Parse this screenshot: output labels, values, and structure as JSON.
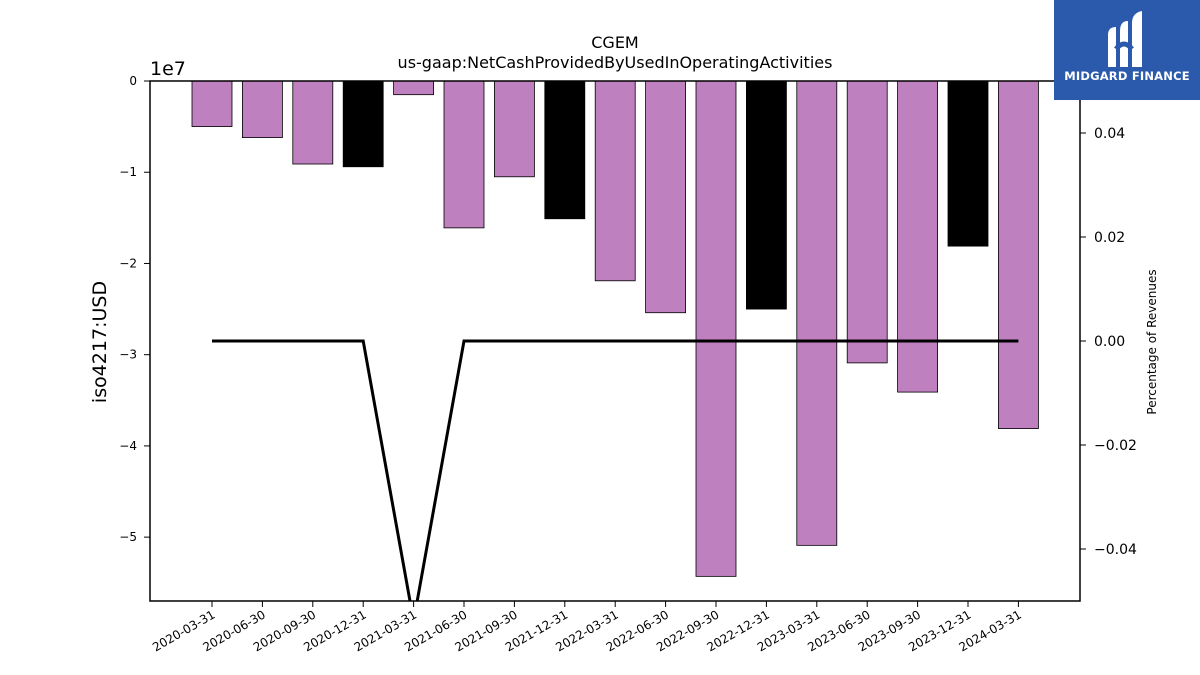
{
  "chart_data": {
    "type": "bar",
    "title": "CGEM",
    "subtitle": "us-gaap:NetCashProvidedByUsedInOperatingActivities",
    "ylabel": "iso4217:USD",
    "y_offset_label": "1e7",
    "y2label": "Percentage of Revenues",
    "ylim": [
      -5.7,
      0
    ],
    "y2lim": [
      -0.05,
      0.05
    ],
    "yticks": [
      "0",
      "−1",
      "−2",
      "−3",
      "−4",
      "−5"
    ],
    "yticks_values": [
      0,
      -1,
      -2,
      -3,
      -4,
      -5
    ],
    "y2ticks": [
      "0.04",
      "0.02",
      "0.00",
      "−0.02",
      "−0.04"
    ],
    "y2ticks_values": [
      0.04,
      0.02,
      0.0,
      -0.02,
      -0.04
    ],
    "categories": [
      "2020-03-31",
      "2020-06-30",
      "2020-09-30",
      "2020-12-31",
      "2021-03-31",
      "2021-06-30",
      "2021-09-30",
      "2021-12-31",
      "2022-03-31",
      "2022-06-30",
      "2022-09-30",
      "2022-12-31",
      "2023-03-31",
      "2023-06-30",
      "2023-09-30",
      "2023-12-31",
      "2024-03-31"
    ],
    "values": [
      -0.5,
      -0.62,
      -0.91,
      -0.94,
      -0.15,
      -1.61,
      -1.05,
      -1.51,
      -2.19,
      -2.54,
      -5.43,
      -2.5,
      -5.09,
      -3.09,
      -3.41,
      -1.81,
      -3.81
    ],
    "bar_colors": [
      "#bf80bf",
      "#bf80bf",
      "#bf80bf",
      "#000000",
      "#bf80bf",
      "#bf80bf",
      "#bf80bf",
      "#000000",
      "#bf80bf",
      "#bf80bf",
      "#bf80bf",
      "#000000",
      "#bf80bf",
      "#bf80bf",
      "#bf80bf",
      "#000000",
      "#bf80bf"
    ],
    "ratio_line": [
      0,
      0,
      0,
      0,
      null,
      0,
      0,
      0,
      0,
      0,
      0,
      0,
      0,
      0,
      0,
      0,
      0
    ],
    "grid": false
  },
  "logo": {
    "text": "MIDGARD FINANCE",
    "color": "#2b5aad"
  }
}
